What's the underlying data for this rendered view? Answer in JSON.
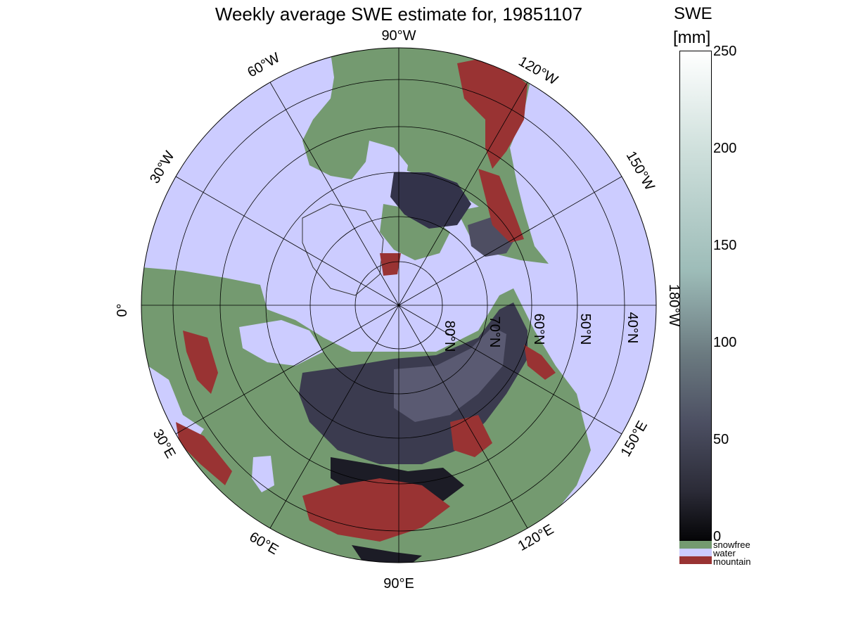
{
  "title": "Weekly average SWE estimate for, 19851107",
  "colorbar": {
    "label_line1": "SWE",
    "label_line2": "[mm]",
    "ticks": [
      "250",
      "200",
      "150",
      "100",
      "50",
      "0"
    ],
    "categories": [
      {
        "label": "snowfree",
        "color": "#749a70"
      },
      {
        "label": "water",
        "color": "#ccccff"
      },
      {
        "label": "mountain",
        "color": "#993333"
      }
    ]
  },
  "map": {
    "projection": "north polar stereographic",
    "center_latitude": 90,
    "longitude_labels": [
      "90°W",
      "120°W",
      "150°W",
      "180°W",
      "150°E",
      "120°E",
      "90°E",
      "60°E",
      "30°E",
      "0°",
      "30°W",
      "60°W"
    ],
    "latitude_labels": [
      "80°N",
      "70°N",
      "60°N",
      "50°N",
      "40°N"
    ],
    "colors": {
      "snowfree": "#749a70",
      "water": "#ccccff",
      "mountain": "#993333",
      "snow_shallow": "#2b2b3a",
      "snow_mid": "#56566c",
      "graticule": "#000000"
    }
  }
}
